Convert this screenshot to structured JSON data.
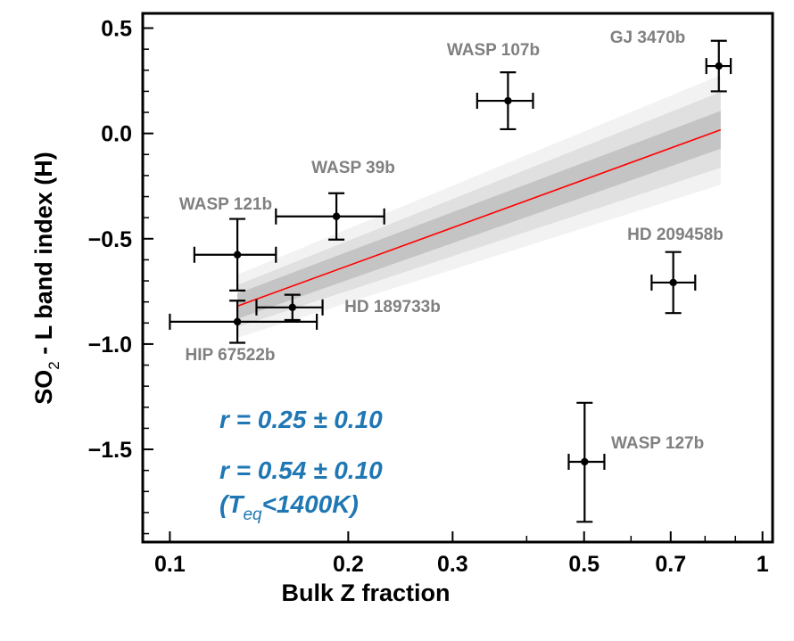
{
  "chart_data": {
    "type": "scatter",
    "xlabel": "Bulk Z fraction",
    "ylabel": "SO2 - L band index (H)",
    "ylabel_parts": {
      "pre": "SO",
      "sub": "2",
      "post": " - L band index (H)"
    },
    "xscale": "log",
    "xlim": [
      0.09,
      1.04
    ],
    "ylim": [
      -1.94,
      0.57
    ],
    "xticks": [
      0.1,
      0.2,
      0.3,
      0.5,
      0.7,
      1
    ],
    "xtick_labels": [
      "0.1",
      "0.2",
      "0.3",
      "0.5",
      "0.7",
      "1"
    ],
    "xminor_ticks": [
      0.4,
      0.6,
      0.8,
      0.9
    ],
    "yticks": [
      0.5,
      0.0,
      -0.5,
      -1.0,
      -1.5
    ],
    "ytick_labels": [
      "0.5",
      "0.0",
      "−0.5",
      "−1.0",
      "−1.5"
    ],
    "grid": false,
    "points": [
      {
        "name": "GJ 3470b",
        "x": 0.844,
        "y": 0.32,
        "xerr": [
          0.04,
          0.04
        ],
        "yerr": [
          0.12,
          0.12
        ]
      },
      {
        "name": "WASP 107b",
        "x": 0.372,
        "y": 0.155,
        "xerr": [
          0.042,
          0.038
        ],
        "yerr": [
          0.135,
          0.135
        ]
      },
      {
        "name": "WASP 39b",
        "x": 0.191,
        "y": -0.394,
        "xerr": [
          0.04,
          0.039
        ],
        "yerr": [
          0.11,
          0.11
        ]
      },
      {
        "name": "WASP 121b",
        "x": 0.13,
        "y": -0.576,
        "xerr": [
          0.02,
          0.021
        ],
        "yerr": [
          0.17,
          0.17
        ]
      },
      {
        "name": "HD 209458b",
        "x": 0.161,
        "y": -0.826,
        "xerr": [
          0.021,
          0.02
        ],
        "yerr": [
          0.06,
          0.06
        ]
      },
      {
        "name": "HD 189733b",
        "x": 0.13,
        "y": -0.894,
        "xerr": [
          0.03,
          0.047
        ],
        "yerr": [
          0.1,
          0.1
        ]
      },
      {
        "name": "HIP 67522b",
        "x": 0.707,
        "y": -0.708,
        "xerr": [
          0.057,
          0.063
        ],
        "yerr": [
          0.145,
          0.145
        ]
      },
      {
        "name": "WASP 127b",
        "x": 0.501,
        "y": -1.559,
        "xerr": [
          0.03,
          0.04
        ],
        "yerr": [
          0.285,
          0.28
        ]
      }
    ],
    "fit": {
      "x": [
        0.13,
        0.85
      ],
      "y": [
        -0.82,
        0.017
      ],
      "bands_halfwidth": {
        "1sigma": [
          0.06,
          0.09
        ],
        "2sigma": [
          0.1,
          0.18
        ],
        "3sigma": [
          0.15,
          0.26
        ]
      },
      "line_color": "#ff0000",
      "band_colors": [
        "#f2f2f2",
        "#e0e0e0",
        "#c4c4c4"
      ]
    },
    "annotations": [
      {
        "text": "r = 0.25 ± 0.10"
      },
      {
        "text": "r = 0.54 ± 0.10"
      },
      {
        "pre": "(T",
        "sub": "eq",
        "post": "<1400K)"
      }
    ],
    "label_color": "#808080",
    "annotation_color": "#1f77b4",
    "marker_color": "#000000"
  }
}
